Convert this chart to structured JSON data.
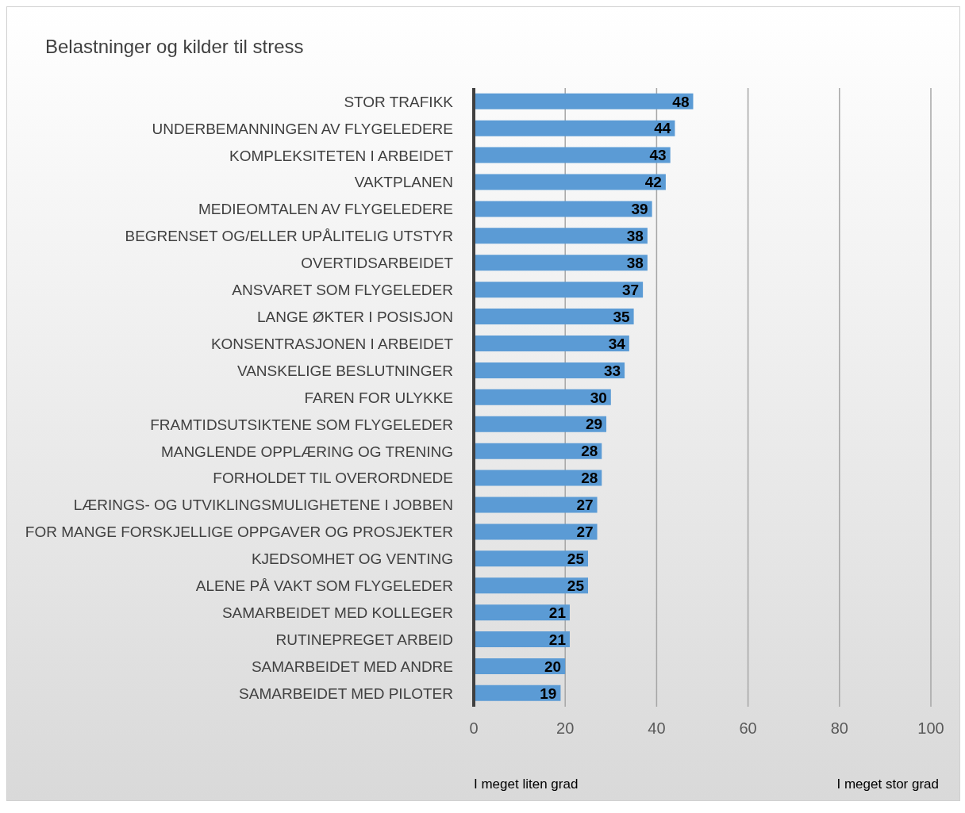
{
  "chart_data": {
    "type": "bar",
    "orientation": "horizontal",
    "title": "Belastninger og kilder til stress",
    "categories": [
      "STOR TRAFIKK",
      "UNDERBEMANNINGEN AV FLYGELEDERE",
      "KOMPLEKSITETEN I ARBEIDET",
      "VAKTPLANEN",
      "MEDIEOMTALEN AV FLYGELEDERE",
      "BEGRENSET OG/ELLER UPÅLITELIG UTSTYR",
      "OVERTIDSARBEIDET",
      "ANSVARET SOM FLYGELEDER",
      "LANGE ØKTER I POSISJON",
      "KONSENTRASJONEN I ARBEIDET",
      "VANSKELIGE BESLUTNINGER",
      "FAREN FOR ULYKKE",
      "FRAMTIDSUTSIKTENE SOM FLYGELEDER",
      "MANGLENDE OPPLÆRING OG TRENING",
      "FORHOLDET TIL OVERORDNEDE",
      "LÆRINGS- OG UTVIKLINGSMULIGHETENE I JOBBEN",
      "FOR MANGE FORSKJELLIGE OPPGAVER OG PROSJEKTER",
      "KJEDSOMHET OG VENTING",
      "ALENE PÅ VAKT SOM FLYGELEDER",
      "SAMARBEIDET MED KOLLEGER",
      "RUTINEPREGET ARBEID",
      "SAMARBEIDET MED ANDRE",
      "SAMARBEIDET MED PILOTER"
    ],
    "values": [
      48,
      44,
      43,
      42,
      39,
      38,
      38,
      37,
      35,
      34,
      33,
      30,
      29,
      28,
      28,
      27,
      27,
      25,
      25,
      21,
      21,
      20,
      19
    ],
    "color": "#5b9bd5",
    "xlim": [
      0,
      100
    ],
    "xticks": [
      0,
      20,
      40,
      60,
      80,
      100
    ],
    "grid": "x",
    "data_labels": true,
    "annotations": [
      "I meget liten grad",
      "I meget stor grad"
    ]
  }
}
